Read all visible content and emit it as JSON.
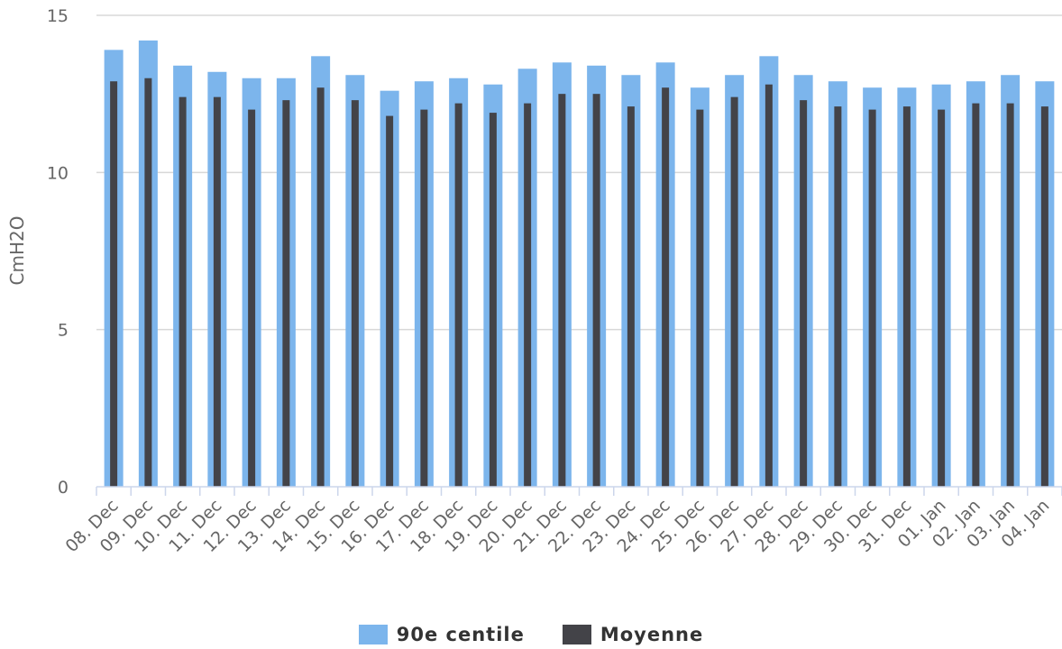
{
  "chart_data": {
    "type": "bar",
    "title": "",
    "xlabel": "",
    "ylabel": "CmH2O",
    "ylim": [
      0,
      15
    ],
    "yticks": [
      0,
      5,
      10,
      15
    ],
    "grid": true,
    "legend_placement": "bottom-center",
    "categories": [
      "08. Dec",
      "09. Dec",
      "10. Dec",
      "11. Dec",
      "12. Dec",
      "13. Dec",
      "14. Dec",
      "15. Dec",
      "16. Dec",
      "17. Dec",
      "18. Dec",
      "19. Dec",
      "20. Dec",
      "21. Dec",
      "22. Dec",
      "23. Dec",
      "24. Dec",
      "25. Dec",
      "26. Dec",
      "27. Dec",
      "28. Dec",
      "29. Dec",
      "30. Dec",
      "31. Dec",
      "01. Jan",
      "02. Jan",
      "03. Jan",
      "04. Jan"
    ],
    "series": [
      {
        "name": "90e centile",
        "color": "#7cb5ec",
        "values": [
          13.9,
          14.2,
          13.4,
          13.2,
          13.0,
          13.0,
          13.7,
          13.1,
          12.6,
          12.9,
          13.0,
          12.8,
          13.3,
          13.5,
          13.4,
          13.1,
          13.5,
          12.7,
          13.1,
          13.7,
          13.1,
          12.9,
          12.7,
          12.7,
          12.8,
          12.9,
          13.1,
          12.9
        ]
      },
      {
        "name": "Moyenne",
        "color": "#434348",
        "values": [
          12.9,
          13.0,
          12.4,
          12.4,
          12.0,
          12.3,
          12.7,
          12.3,
          11.8,
          12.0,
          12.2,
          11.9,
          12.2,
          12.5,
          12.5,
          12.1,
          12.7,
          12.0,
          12.4,
          12.8,
          12.3,
          12.1,
          12.0,
          12.1,
          12.0,
          12.2,
          12.2,
          12.1
        ]
      }
    ]
  }
}
